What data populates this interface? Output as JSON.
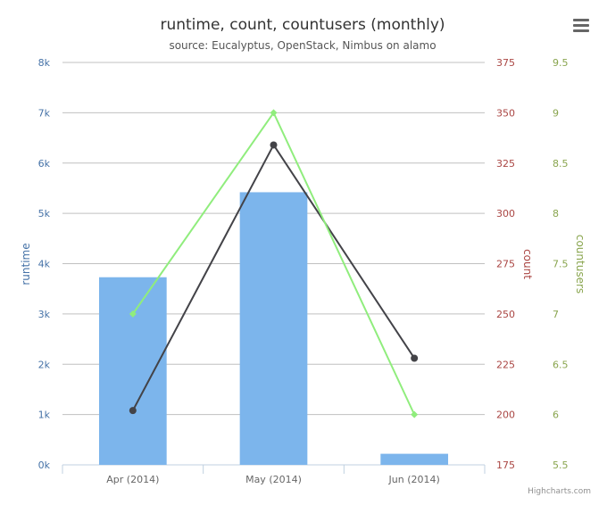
{
  "menu_icon": "hamburger-menu-icon",
  "credits": "Highcharts.com",
  "colors": {
    "runtime": "#7cb5ec",
    "count": "#434348",
    "countusers": "#90ed7d",
    "runtime_axis": "#4572a7",
    "count_axis": "#aa4643",
    "countusers_axis": "#89a54e",
    "title": "#333333",
    "subtitle": "#555555",
    "grid": "#c0c0c0"
  },
  "chart_data": {
    "type": "bar",
    "title": "runtime, count, countusers (monthly)",
    "subtitle": "source: Eucalyptus, OpenStack, Nimbus on alamo",
    "categories": [
      "Apr (2014)",
      "May (2014)",
      "Jun (2014)"
    ],
    "grid": true,
    "legend": "none",
    "y_axes": [
      {
        "id": "runtime",
        "label": "runtime",
        "side": "left",
        "range": [
          0,
          8000
        ],
        "ticks": [
          "0k",
          "1k",
          "2k",
          "3k",
          "4k",
          "5k",
          "6k",
          "7k",
          "8k"
        ]
      },
      {
        "id": "count",
        "label": "count",
        "side": "right",
        "range": [
          175,
          375
        ],
        "ticks": [
          "175",
          "200",
          "225",
          "250",
          "275",
          "300",
          "325",
          "350",
          "375"
        ]
      },
      {
        "id": "countusers",
        "label": "countusers",
        "side": "right",
        "range": [
          5.5,
          9.5
        ],
        "ticks": [
          "5.5",
          "6",
          "6.5",
          "7",
          "7.5",
          "8",
          "8.5",
          "9",
          "9.5"
        ]
      }
    ],
    "series": [
      {
        "name": "runtime",
        "type": "column",
        "axis": "runtime",
        "values": [
          3730,
          5420,
          220
        ]
      },
      {
        "name": "count",
        "type": "line",
        "axis": "count",
        "values": [
          202,
          334,
          228
        ]
      },
      {
        "name": "countusers",
        "type": "line",
        "axis": "countusers",
        "values": [
          7,
          9,
          6
        ]
      }
    ]
  }
}
